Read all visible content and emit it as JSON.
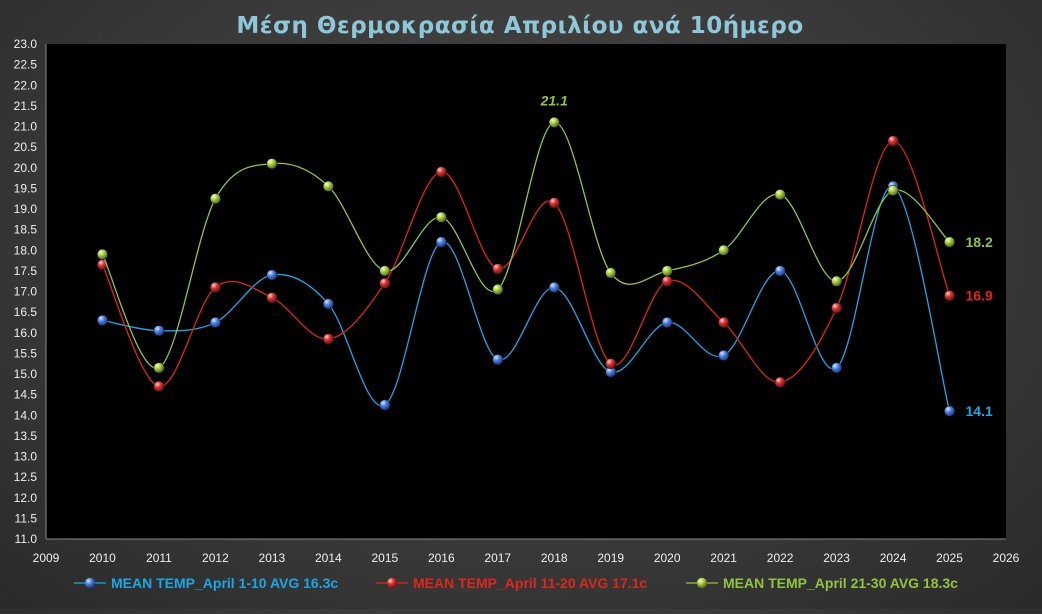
{
  "chart_data": {
    "type": "line",
    "title": "Μέση Θερμοκρασία Απριλίου ανά 10ήμερο",
    "xlabel": "",
    "ylabel": "",
    "xlim": [
      2009,
      2026
    ],
    "ylim": [
      11.0,
      23.0
    ],
    "x_ticks": [
      "2009",
      "2010",
      "2011",
      "2012",
      "2013",
      "2014",
      "2015",
      "2016",
      "2017",
      "2018",
      "2019",
      "2020",
      "2021",
      "2022",
      "2023",
      "2024",
      "2025",
      "2026"
    ],
    "y_ticks": [
      "11.0",
      "11.5",
      "12.0",
      "12.5",
      "13.0",
      "13.5",
      "14.0",
      "14.5",
      "15.0",
      "15.5",
      "16.0",
      "16.5",
      "17.0",
      "17.5",
      "18.0",
      "18.5",
      "19.0",
      "19.5",
      "20.0",
      "20.5",
      "21.0",
      "21.5",
      "22.0",
      "22.5",
      "23.0"
    ],
    "x": [
      2010,
      2011,
      2012,
      2013,
      2014,
      2015,
      2016,
      2017,
      2018,
      2019,
      2020,
      2021,
      2022,
      2023,
      2024,
      2025
    ],
    "grid": false,
    "legend_position": "bottom",
    "series": [
      {
        "name": "MEAN TEMP_April 1-10 AVG 16.3c",
        "color": "#1aa7e8",
        "marker_color": "#3d6fd6",
        "values": [
          16.3,
          16.05,
          16.25,
          17.4,
          16.7,
          14.25,
          18.2,
          15.35,
          17.1,
          15.05,
          16.25,
          15.45,
          17.5,
          15.15,
          19.55,
          14.1
        ],
        "end_label": "14.1"
      },
      {
        "name": "MEAN TEMP_April 11-20 AVG 17.1c",
        "color": "#e0251b",
        "marker_color": "#d42a2a",
        "values": [
          17.65,
          14.7,
          17.1,
          16.85,
          15.85,
          17.2,
          19.9,
          17.55,
          19.15,
          15.25,
          17.25,
          16.25,
          14.8,
          16.6,
          20.65,
          16.9
        ],
        "end_label": "16.9"
      },
      {
        "name": "MEAN TEMP_April 21-30 AVG 18.3c",
        "color": "#8fc63c",
        "marker_color": "#a2c93a",
        "values": [
          17.9,
          15.15,
          19.25,
          20.1,
          19.55,
          17.5,
          18.8,
          17.05,
          21.1,
          17.45,
          17.5,
          18.0,
          19.35,
          17.25,
          19.45,
          18.2
        ],
        "end_label": "18.2",
        "peak_label": "21.1"
      }
    ]
  },
  "colors": {
    "title": "#8ec8d8",
    "plot_background": "#000000",
    "axis_line": "#8a8a8a"
  }
}
